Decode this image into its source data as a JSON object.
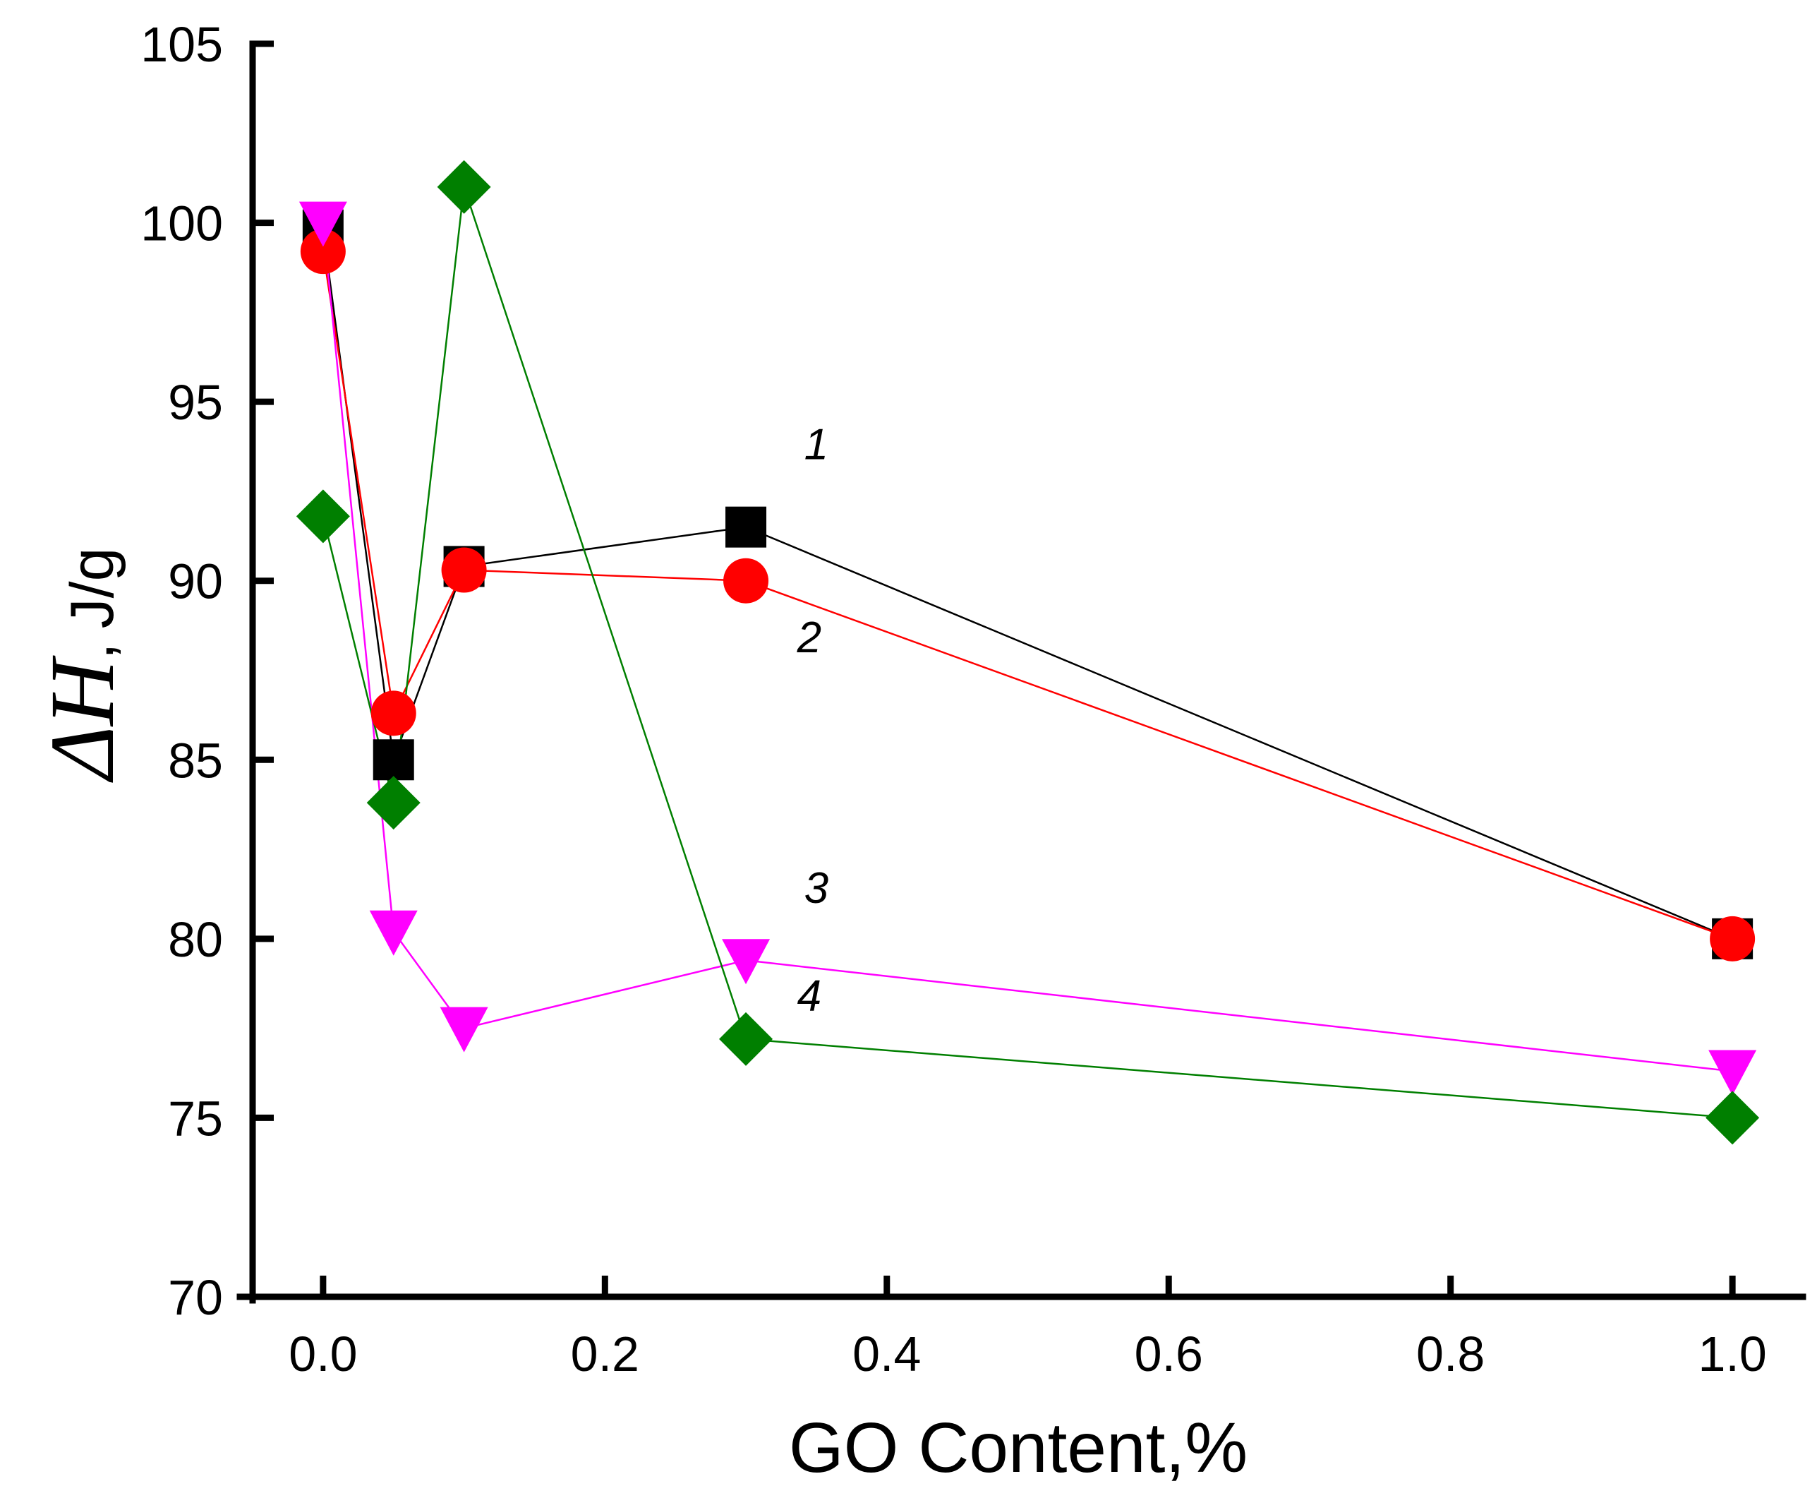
{
  "chart_data": {
    "type": "line",
    "title": "",
    "xlabel": "GO Content,%",
    "ylabel_symbol": "ΔH",
    "ylabel_separator": ",",
    "ylabel_unit": "J/g",
    "xlim": [
      -0.05,
      1.05
    ],
    "ylim": [
      70,
      105
    ],
    "xticks": [
      "0.0",
      "0.2",
      "0.4",
      "0.6",
      "0.8",
      "1.0"
    ],
    "xtick_values": [
      0.0,
      0.2,
      0.4,
      0.6,
      0.8,
      1.0
    ],
    "yticks": [
      "70",
      "75",
      "80",
      "85",
      "90",
      "95",
      "100",
      "105"
    ],
    "ytick_values": [
      70,
      75,
      80,
      85,
      90,
      95,
      100,
      105
    ],
    "grid": false,
    "legend": "none",
    "series": [
      {
        "name": "1",
        "marker": "square",
        "color": "#000000",
        "x": [
          0.0,
          0.05,
          0.1,
          0.3,
          1.0
        ],
        "y": [
          99.8,
          85.0,
          90.4,
          91.5,
          80.0
        ]
      },
      {
        "name": "2",
        "marker": "circle",
        "color": "#ff0000",
        "x": [
          0.0,
          0.05,
          0.1,
          0.3,
          1.0
        ],
        "y": [
          99.2,
          86.3,
          90.3,
          90.0,
          80.0
        ]
      },
      {
        "name": "3",
        "marker": "triangle-down",
        "color": "#ff00ff",
        "x": [
          0.0,
          0.05,
          0.1,
          0.3,
          1.0
        ],
        "y": [
          100.0,
          80.2,
          77.5,
          79.4,
          76.3
        ]
      },
      {
        "name": "4",
        "marker": "diamond",
        "color": "#007f00",
        "x": [
          0.0,
          0.05,
          0.1,
          0.3,
          1.0
        ],
        "y": [
          91.8,
          83.8,
          101.0,
          77.2,
          75.0
        ]
      }
    ],
    "annotations": [
      {
        "text": "1",
        "series": "1",
        "x": 0.35,
        "y": 93.4
      },
      {
        "text": "2",
        "series": "2",
        "x": 0.345,
        "y": 88.0
      },
      {
        "text": "3",
        "series": "3",
        "x": 0.35,
        "y": 81.0
      },
      {
        "text": "4",
        "series": "4",
        "x": 0.345,
        "y": 78.0
      }
    ]
  }
}
